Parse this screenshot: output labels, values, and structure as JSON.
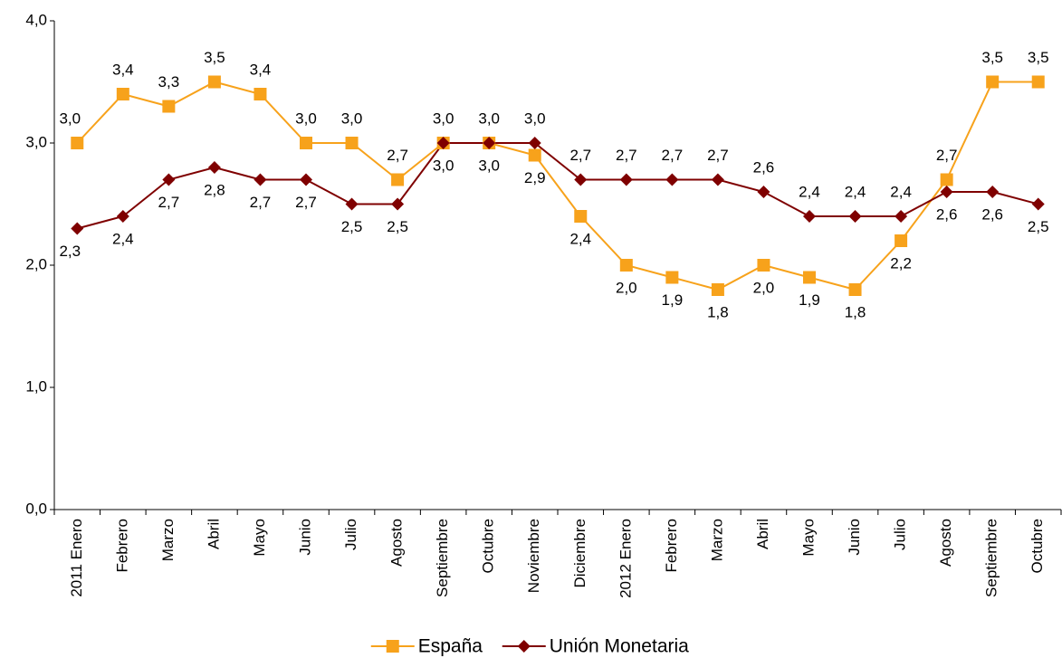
{
  "chart_data": {
    "type": "line",
    "categories": [
      "2011 Enero",
      "Febrero",
      "Marzo",
      "Abril",
      "Mayo",
      "Junio",
      "Julio",
      "Agosto",
      "Septiembre",
      "Octubre",
      "Noviembre",
      "Diciembre",
      "2012 Enero",
      "Febrero",
      "Marzo",
      "Abril",
      "Mayo",
      "Junio",
      "Julio",
      "Agosto",
      "Septiembre",
      "Octubre"
    ],
    "series": [
      {
        "name": "España",
        "color": "#f7a21b",
        "marker": "square",
        "values": [
          3.0,
          3.4,
          3.3,
          3.5,
          3.4,
          3.0,
          3.0,
          2.7,
          3.0,
          3.0,
          2.9,
          2.4,
          2.0,
          1.9,
          1.8,
          2.0,
          1.9,
          1.8,
          2.2,
          2.7,
          3.5,
          3.5
        ],
        "value_labels": [
          "3,0",
          "3,4",
          "3,3",
          "3,5",
          "3,4",
          "3,0",
          "3,0",
          "2,7",
          "3,0",
          "3,0",
          "2,9",
          "2,4",
          "2,0",
          "1,9",
          "1,8",
          "2,0",
          "1,9",
          "1,8",
          "2,2",
          "2,7",
          "3,5",
          "3,5"
        ]
      },
      {
        "name": "Unión Monetaria",
        "color": "#7f0000",
        "marker": "diamond",
        "values": [
          2.3,
          2.4,
          2.7,
          2.8,
          2.7,
          2.7,
          2.5,
          2.5,
          3.0,
          3.0,
          3.0,
          2.7,
          2.7,
          2.7,
          2.7,
          2.6,
          2.4,
          2.4,
          2.4,
          2.6,
          2.6,
          2.5
        ],
        "value_labels": [
          "2,3",
          "2,4",
          "2,7",
          "2,8",
          "2,7",
          "2,7",
          "2,5",
          "2,5",
          "3,0",
          "3,0",
          "3,0",
          "2,7",
          "2,7",
          "2,7",
          "2,7",
          "2,6",
          "2,4",
          "2,4",
          "2,4",
          "2,6",
          "2,6",
          "2,5"
        ]
      }
    ],
    "ylim": [
      0,
      4
    ],
    "yticks": [
      {
        "value": 0,
        "label": "0,0"
      },
      {
        "value": 1,
        "label": "1,0"
      },
      {
        "value": 2,
        "label": "2,0"
      },
      {
        "value": 3,
        "label": "3,0"
      },
      {
        "value": 4,
        "label": "4,0"
      }
    ],
    "legend": "bottom"
  }
}
